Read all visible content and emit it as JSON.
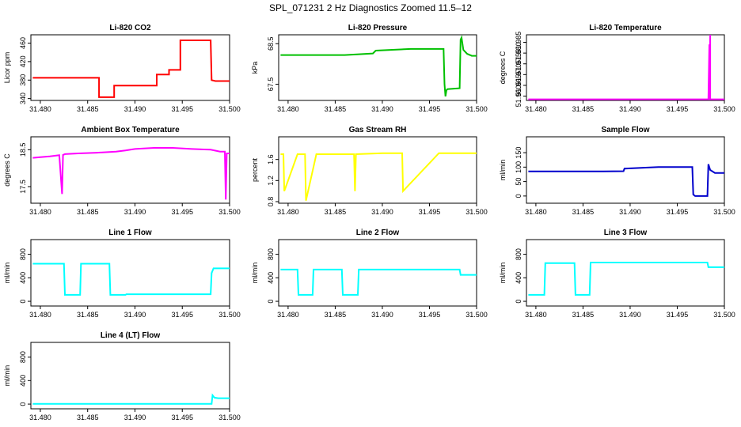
{
  "page": {
    "title": "SPL_071231  2 Hz Diagnostics Zoomed 11.5–12"
  },
  "chart_data": [
    {
      "type": "line",
      "title": "Li‑820 CO2",
      "ylabel": "Licor ppm",
      "color": "#ff0000",
      "xlim": [
        31.479,
        31.5
      ],
      "ylim": [
        336,
        478
      ],
      "yticks": [
        340,
        380,
        420,
        460
      ],
      "xticks": [
        31.48,
        31.485,
        31.49,
        31.495,
        31.5
      ],
      "xtick_labels": [
        "31.480",
        "31.485",
        "31.490",
        "31.495",
        "31.500"
      ],
      "ytick_labels": [
        "340",
        "380",
        "420",
        "460"
      ],
      "series": [
        {
          "x": [
            31.4792,
            31.4862,
            31.4862,
            31.4878,
            31.4878,
            31.4908,
            31.4908,
            31.4923,
            31.4923,
            31.4936,
            31.4936,
            31.4948,
            31.4948,
            31.498,
            31.4981,
            31.4985,
            31.5
          ],
          "y": [
            385,
            385,
            343,
            343,
            368,
            368,
            368,
            368,
            392,
            392,
            402,
            402,
            466,
            466,
            380,
            378,
            378
          ]
        }
      ]
    },
    {
      "type": "line",
      "title": "Li‑820 Pressure",
      "ylabel": "kPa",
      "color": "#00c000",
      "xlim": [
        31.479,
        31.5
      ],
      "ylim": [
        67.1,
        68.72
      ],
      "yticks": [
        67.5,
        68.5
      ],
      "xticks": [
        31.48,
        31.485,
        31.49,
        31.495,
        31.5
      ],
      "xtick_labels": [
        "31.480",
        "31.485",
        "31.490",
        "31.495",
        "31.500"
      ],
      "ytick_labels": [
        "67.5",
        "68.5"
      ],
      "series": [
        {
          "x": [
            31.4792,
            31.486,
            31.489,
            31.4893,
            31.493,
            31.4965,
            31.4966,
            31.4967,
            31.4968,
            31.4969,
            31.4982,
            31.4983,
            31.4984,
            31.4986,
            31.499,
            31.4995,
            31.5
          ],
          "y": [
            68.22,
            68.22,
            68.26,
            68.33,
            68.37,
            68.37,
            67.5,
            67.2,
            67.35,
            67.38,
            67.4,
            68.6,
            68.65,
            68.35,
            68.25,
            68.2,
            68.2
          ]
        }
      ]
    },
    {
      "type": "line",
      "title": "Li‑820 Temperature",
      "ylabel": "degrees C",
      "color": "#ff00ff",
      "xlim": [
        31.479,
        31.5
      ],
      "ylim": [
        51.958,
        51.9885
      ],
      "yticks": [
        51.96,
        51.965,
        51.97,
        51.975,
        51.98,
        51.985
      ],
      "xticks": [
        31.48,
        31.485,
        31.49,
        31.495,
        31.5
      ],
      "xtick_labels": [
        "31.480",
        "31.485",
        "31.490",
        "31.495",
        "31.500"
      ],
      "ytick_labels": [
        "51.960",
        "51.965",
        "51.970",
        "51.975",
        "51.980",
        "51.985"
      ],
      "series": [
        {
          "x": [
            31.4792,
            31.4983,
            31.4984,
            31.4984,
            31.4985,
            31.4985,
            31.4986,
            31.5
          ],
          "y": [
            51.9585,
            51.9585,
            51.984,
            51.9585,
            51.9885,
            51.9585,
            51.9585,
            51.9585
          ]
        }
      ]
    },
    {
      "type": "line",
      "title": "Ambient Box Temperature",
      "ylabel": "degrees C",
      "color": "#ff00ff",
      "xlim": [
        31.479,
        31.5
      ],
      "ylim": [
        17.05,
        18.85
      ],
      "yticks": [
        17.5,
        18.5
      ],
      "xticks": [
        31.48,
        31.485,
        31.49,
        31.495,
        31.5
      ],
      "xtick_labels": [
        "31.480",
        "31.485",
        "31.490",
        "31.495",
        "31.500"
      ],
      "ytick_labels": [
        "17.5",
        "18.5"
      ],
      "series": [
        {
          "x": [
            31.4792,
            31.48,
            31.481,
            31.482,
            31.4823,
            31.4824,
            31.4826,
            31.484,
            31.486,
            31.488,
            31.489,
            31.49,
            31.492,
            31.494,
            31.496,
            31.498,
            31.499,
            31.4995,
            31.4996,
            31.4997,
            31.5
          ],
          "y": [
            18.28,
            18.3,
            18.32,
            18.35,
            17.3,
            18.36,
            18.38,
            18.4,
            18.42,
            18.45,
            18.48,
            18.52,
            18.55,
            18.55,
            18.52,
            18.5,
            18.45,
            18.45,
            17.15,
            18.4,
            18.4
          ]
        }
      ]
    },
    {
      "type": "line",
      "title": "Gas Stream RH",
      "ylabel": "percent",
      "color": "#ffff00",
      "xlim": [
        31.479,
        31.5
      ],
      "ylim": [
        0.77,
        2.03
      ],
      "yticks": [
        0.8,
        1.2,
        1.6
      ],
      "xticks": [
        31.48,
        31.485,
        31.49,
        31.495,
        31.5
      ],
      "xtick_labels": [
        "31.480",
        "31.485",
        "31.490",
        "31.495",
        "31.500"
      ],
      "ytick_labels": [
        "0.8",
        "1.2",
        "1.6"
      ],
      "series": [
        {
          "x": [
            31.4792,
            31.4795,
            31.4796,
            31.481,
            31.4818,
            31.4819,
            31.483,
            31.487,
            31.4871,
            31.4872,
            31.49,
            31.4921,
            31.4922,
            31.496,
            31.497,
            31.499,
            31.5
          ],
          "y": [
            1.7,
            1.7,
            1.0,
            1.7,
            1.7,
            0.82,
            1.7,
            1.7,
            1.0,
            1.7,
            1.72,
            1.72,
            1.0,
            1.72,
            1.72,
            1.72,
            1.72
          ]
        }
      ]
    },
    {
      "type": "line",
      "title": "Sample Flow",
      "ylabel": "ml/min",
      "color": "#0000cc",
      "xlim": [
        31.479,
        31.5
      ],
      "ylim": [
        -25,
        205
      ],
      "yticks": [
        0,
        50,
        100,
        150
      ],
      "xticks": [
        31.48,
        31.485,
        31.49,
        31.495,
        31.5
      ],
      "xtick_labels": [
        "31.480",
        "31.485",
        "31.490",
        "31.495",
        "31.500"
      ],
      "ytick_labels": [
        "0",
        "50",
        "100",
        "150"
      ],
      "series": [
        {
          "x": [
            31.4792,
            31.486,
            31.4893,
            31.4894,
            31.493,
            31.4966,
            31.4967,
            31.4969,
            31.4982,
            31.4983,
            31.4985,
            31.499,
            31.5
          ],
          "y": [
            85,
            85,
            86,
            95,
            100,
            100,
            5,
            0,
            0,
            110,
            90,
            80,
            80
          ]
        }
      ]
    },
    {
      "type": "line",
      "title": "Line 1 Flow",
      "ylabel": "ml/min",
      "color": "#00ffff",
      "xlim": [
        31.479,
        31.5
      ],
      "ylim": [
        -80,
        1050
      ],
      "yticks": [
        0,
        400,
        800
      ],
      "xticks": [
        31.48,
        31.485,
        31.49,
        31.495,
        31.5
      ],
      "xtick_labels": [
        "31.480",
        "31.485",
        "31.490",
        "31.495",
        "31.500"
      ],
      "ytick_labels": [
        "0",
        "400",
        "800"
      ],
      "series": [
        {
          "x": [
            31.4792,
            31.4825,
            31.4826,
            31.4842,
            31.4843,
            31.4873,
            31.4874,
            31.489,
            31.4891,
            31.498,
            31.4981,
            31.4983,
            31.5
          ],
          "y": [
            640,
            640,
            110,
            110,
            640,
            640,
            110,
            110,
            120,
            120,
            480,
            560,
            560
          ]
        }
      ]
    },
    {
      "type": "line",
      "title": "Line 2 Flow",
      "ylabel": "ml/min",
      "color": "#00ffff",
      "xlim": [
        31.479,
        31.5
      ],
      "ylim": [
        -80,
        1050
      ],
      "yticks": [
        0,
        400,
        800
      ],
      "xticks": [
        31.48,
        31.485,
        31.49,
        31.495,
        31.5
      ],
      "xtick_labels": [
        "31.480",
        "31.485",
        "31.490",
        "31.495",
        "31.500"
      ],
      "ytick_labels": [
        "0",
        "400",
        "800"
      ],
      "series": [
        {
          "x": [
            31.4792,
            31.481,
            31.4811,
            31.4826,
            31.4827,
            31.4857,
            31.4858,
            31.4874,
            31.4875,
            31.4982,
            31.4983,
            31.5
          ],
          "y": [
            540,
            540,
            110,
            110,
            540,
            540,
            110,
            110,
            540,
            540,
            450,
            450
          ]
        }
      ]
    },
    {
      "type": "line",
      "title": "Line 3 Flow",
      "ylabel": "ml/min",
      "color": "#00ffff",
      "xlim": [
        31.479,
        31.5
      ],
      "ylim": [
        -80,
        1050
      ],
      "yticks": [
        0,
        400,
        800
      ],
      "xticks": [
        31.48,
        31.485,
        31.49,
        31.495,
        31.5
      ],
      "xtick_labels": [
        "31.480",
        "31.485",
        "31.490",
        "31.495",
        "31.500"
      ],
      "ytick_labels": [
        "0",
        "400",
        "800"
      ],
      "series": [
        {
          "x": [
            31.4792,
            31.4809,
            31.481,
            31.4841,
            31.4842,
            31.4857,
            31.4858,
            31.4982,
            31.4983,
            31.5
          ],
          "y": [
            110,
            110,
            650,
            650,
            110,
            110,
            660,
            660,
            580,
            580
          ]
        }
      ]
    },
    {
      "type": "line",
      "title": "Line 4 (LT) Flow",
      "ylabel": "ml/min",
      "color": "#00ffff",
      "xlim": [
        31.479,
        31.5
      ],
      "ylim": [
        -80,
        1050
      ],
      "yticks": [
        0,
        400,
        800
      ],
      "xticks": [
        31.48,
        31.485,
        31.49,
        31.495,
        31.5
      ],
      "xtick_labels": [
        "31.480",
        "31.485",
        "31.490",
        "31.495",
        "31.500"
      ],
      "ytick_labels": [
        "0",
        "400",
        "800"
      ],
      "series": [
        {
          "x": [
            31.4792,
            31.4981,
            31.4982,
            31.4984,
            31.4988,
            31.5
          ],
          "y": [
            5,
            5,
            150,
            110,
            100,
            100
          ]
        }
      ]
    }
  ]
}
